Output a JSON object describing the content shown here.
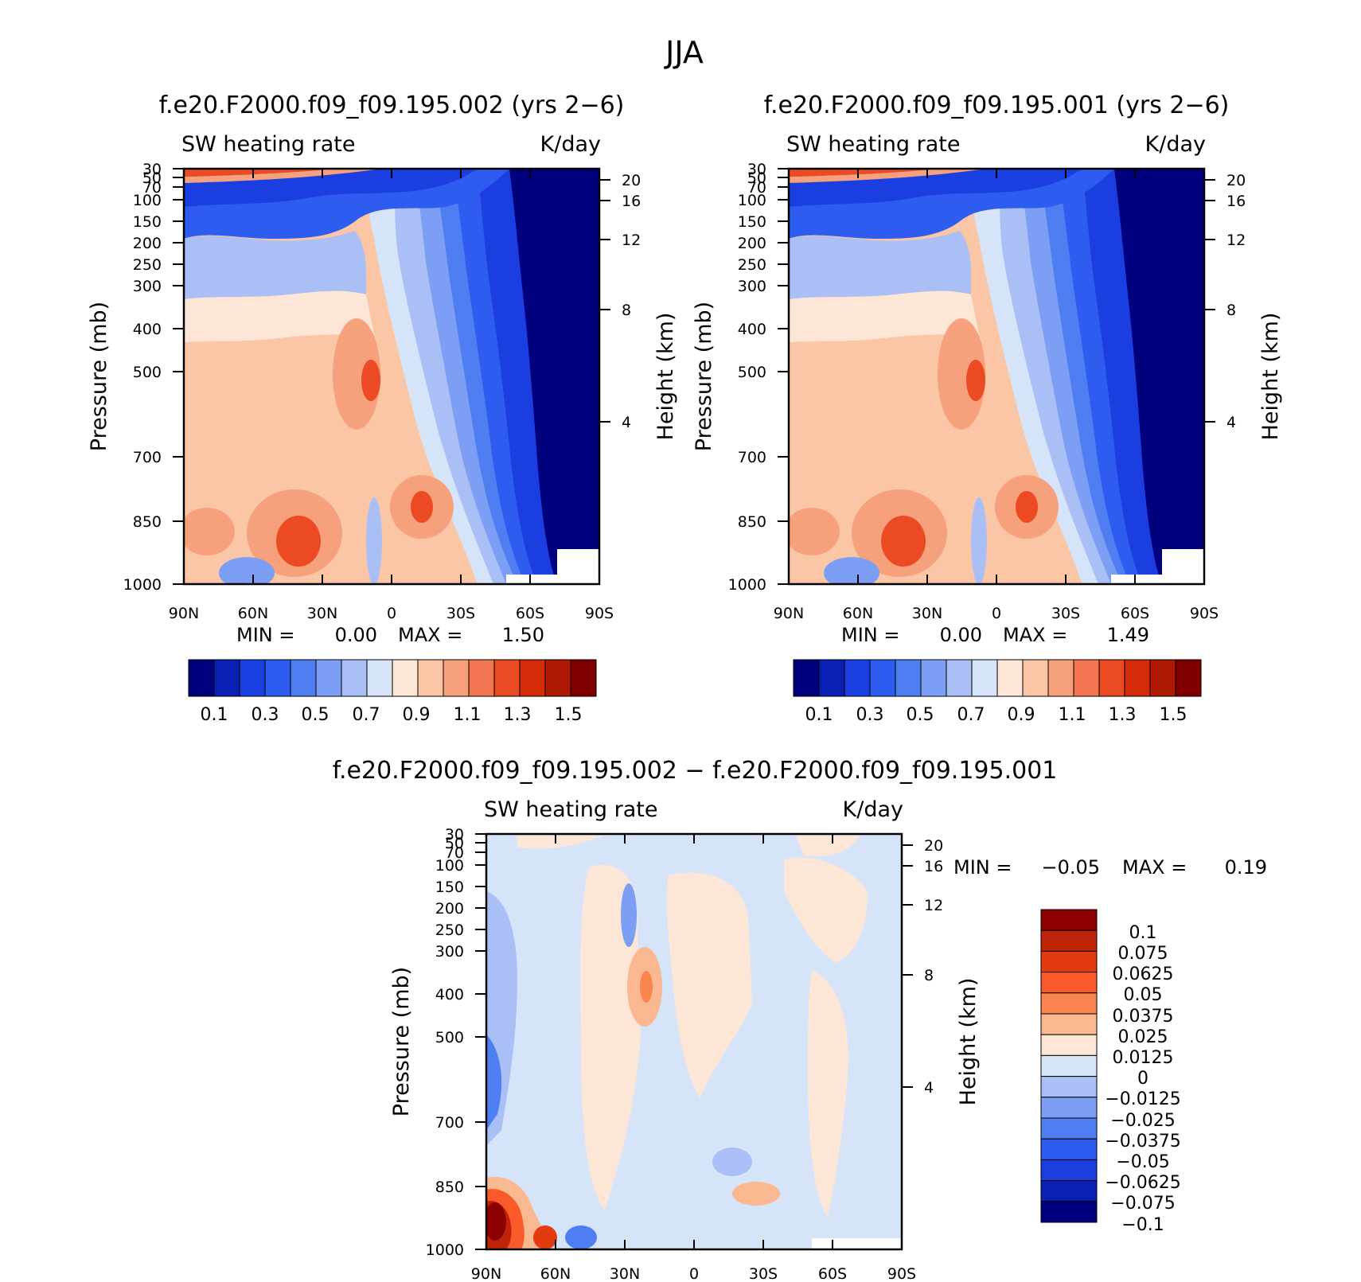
{
  "figure_title": "JJA",
  "units": "K/day",
  "variable": "SW heating rate",
  "chart_data": [
    {
      "type": "heatmap",
      "title": "f.e20.F2000.f09_f09.195.002 (yrs 2−6)",
      "subtitle_left": "SW heating rate",
      "subtitle_right": "K/day",
      "xlabel": "",
      "ylabel": "Pressure (mb)",
      "y2label": "Height (km)",
      "x_ticks": [
        "90N",
        "60N",
        "30N",
        "0",
        "30S",
        "60S",
        "90S"
      ],
      "y_ticks": [
        "30",
        "50",
        "70",
        "100",
        "150",
        "200",
        "250",
        "300",
        "400",
        "500",
        "700",
        "850",
        "1000"
      ],
      "y2_ticks": [
        "20",
        "16",
        "12",
        "8",
        "4"
      ],
      "min_label": "MIN =",
      "min_value": "0.00",
      "max_label": "MAX =",
      "max_value": "1.50",
      "colorbar_levels": [
        "0.1",
        "0.3",
        "0.5",
        "0.7",
        "0.9",
        "1.1",
        "1.3",
        "1.5"
      ],
      "colorbar_colors": [
        "#00007f",
        "#0a1fb4",
        "#1a3ee0",
        "#2f5cf0",
        "#4f7ef2",
        "#7c9ef4",
        "#aabff6",
        "#d6e4fa",
        "#fde6d6",
        "#fac6a6",
        "#f6a07c",
        "#f27450",
        "#ec4a22",
        "#d42c08",
        "#b01a04",
        "#800000"
      ]
    },
    {
      "type": "heatmap",
      "title": "f.e20.F2000.f09_f09.195.001 (yrs 2−6)",
      "subtitle_left": "SW heating rate",
      "subtitle_right": "K/day",
      "xlabel": "",
      "ylabel": "Pressure (mb)",
      "y2label": "Height (km)",
      "x_ticks": [
        "90N",
        "60N",
        "30N",
        "0",
        "30S",
        "60S",
        "90S"
      ],
      "y_ticks": [
        "30",
        "50",
        "70",
        "100",
        "150",
        "200",
        "250",
        "300",
        "400",
        "500",
        "700",
        "850",
        "1000"
      ],
      "y2_ticks": [
        "20",
        "16",
        "12",
        "8",
        "4"
      ],
      "min_label": "MIN =",
      "min_value": "0.00",
      "max_label": "MAX =",
      "max_value": "1.49",
      "colorbar_levels": [
        "0.1",
        "0.3",
        "0.5",
        "0.7",
        "0.9",
        "1.1",
        "1.3",
        "1.5"
      ],
      "colorbar_colors": [
        "#00007f",
        "#0a1fb4",
        "#1a3ee0",
        "#2f5cf0",
        "#4f7ef2",
        "#7c9ef4",
        "#aabff6",
        "#d6e4fa",
        "#fde6d6",
        "#fac6a6",
        "#f6a07c",
        "#f27450",
        "#ec4a22",
        "#d42c08",
        "#b01a04",
        "#800000"
      ]
    },
    {
      "type": "heatmap",
      "title": "f.e20.F2000.f09_f09.195.002 − f.e20.F2000.f09_f09.195.001",
      "subtitle_left": "SW heating rate",
      "subtitle_right": "K/day",
      "xlabel": "",
      "ylabel": "Pressure (mb)",
      "y2label": "Height (km)",
      "x_ticks": [
        "90N",
        "60N",
        "30N",
        "0",
        "30S",
        "60S",
        "90S"
      ],
      "y_ticks": [
        "30",
        "50",
        "70",
        "100",
        "150",
        "200",
        "250",
        "300",
        "400",
        "500",
        "700",
        "850",
        "1000"
      ],
      "y2_ticks": [
        "20",
        "16",
        "12",
        "8",
        "4"
      ],
      "min_label": "MIN =",
      "min_value": "−0.05",
      "max_label": "MAX =",
      "max_value": "0.19",
      "colorbar_levels": [
        "0.1",
        "0.075",
        "0.0625",
        "0.05",
        "0.0375",
        "0.025",
        "0.0125",
        "0",
        "−0.0125",
        "−0.025",
        "−0.0375",
        "−0.05",
        "−0.0625",
        "−0.075",
        "−0.1"
      ],
      "colorbar_colors": [
        "#8c0000",
        "#c02408",
        "#e43a10",
        "#fa5a2a",
        "#f8844e",
        "#f9b890",
        "#fde6d6",
        "#d6e4fa",
        "#aabff6",
        "#7c9ef4",
        "#4f7ef2",
        "#2f5cf0",
        "#1a3ee0",
        "#0a1fb4",
        "#00007f"
      ]
    }
  ]
}
